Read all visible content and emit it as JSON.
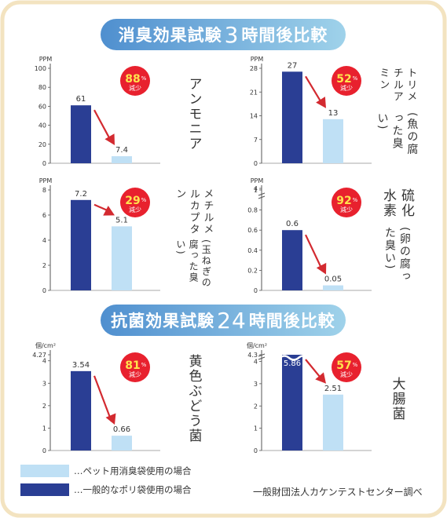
{
  "colors": {
    "frame": "#f3e3c0",
    "general": "#2a3e94",
    "pet": "#bfe0f5",
    "badge": "#e8212e",
    "arrow": "#d32a30",
    "axis": "#555555"
  },
  "sections": {
    "deodor": {
      "pre": "消臭効果試験",
      "num": "3",
      "post": "時間後比較"
    },
    "antibac": {
      "pre": "抗菌効果試験",
      "num": "24",
      "post": "時間後比較"
    }
  },
  "legend": {
    "pet": "…ペット用消臭袋使用の場合",
    "general": "…一般的なポリ袋使用の場合"
  },
  "source": "一般財団法人カケンテストセンター調べ",
  "chart_data": [
    {
      "type": "bar",
      "unit": "PPM",
      "yticks": [
        "0",
        "20",
        "40",
        "60",
        "80",
        "100"
      ],
      "ylim": [
        0,
        100
      ],
      "series": [
        {
          "name": "一般的なポリ袋使用の場合",
          "value": 61,
          "label": "61"
        },
        {
          "name": "ペット用消臭袋使用の場合",
          "value": 7.4,
          "label": "7.4"
        }
      ],
      "reduction": "88",
      "reduction_unit": "%",
      "reduction_text": "減少",
      "label_main": "アンモニア",
      "label_sub": ""
    },
    {
      "type": "bar",
      "unit": "PPM",
      "yticks": [
        "0",
        "7",
        "14",
        "21",
        "28"
      ],
      "ylim": [
        0,
        28
      ],
      "series": [
        {
          "name": "一般的なポリ袋使用の場合",
          "value": 27,
          "label": "27"
        },
        {
          "name": "ペット用消臭袋使用の場合",
          "value": 13,
          "label": "13"
        }
      ],
      "reduction": "52",
      "reduction_unit": "%",
      "reduction_text": "減少",
      "label_main": "トリメチルアミン",
      "label_sub": "(魚の腐った臭い)"
    },
    {
      "type": "bar",
      "unit": "PPM",
      "yticks": [
        "0",
        "2",
        "4",
        "6",
        "8"
      ],
      "ylim": [
        0,
        8
      ],
      "series": [
        {
          "name": "一般的なポリ袋使用の場合",
          "value": 7.2,
          "label": "7.2"
        },
        {
          "name": "ペット用消臭袋使用の場合",
          "value": 5.1,
          "label": "5.1"
        }
      ],
      "reduction": "29",
      "reduction_unit": "%",
      "reduction_text": "減少",
      "label_main": "メチルメルカプタン",
      "label_sub": "(玉ねぎの腐った臭い)"
    },
    {
      "type": "bar",
      "unit": "PPM",
      "yticks": [
        "0",
        "0.2",
        "0.4",
        "0.6",
        "0.8",
        "1",
        "4"
      ],
      "ylim": [
        0,
        1
      ],
      "axis_break": true,
      "series": [
        {
          "name": "一般的なポリ袋使用の場合",
          "value": 0.6,
          "label": "0.6"
        },
        {
          "name": "ペット用消臭袋使用の場合",
          "value": 0.05,
          "label": "0.05"
        }
      ],
      "reduction": "92",
      "reduction_unit": "%",
      "reduction_text": "減少",
      "label_main": "硫化水素",
      "label_sub": "(卵の腐った臭い)"
    },
    {
      "type": "bar",
      "unit": "個/cm²",
      "yticks": [
        "0",
        "1",
        "2",
        "3",
        "4",
        "4.27"
      ],
      "ylim": [
        0,
        4.27
      ],
      "series": [
        {
          "name": "一般的なポリ袋使用の場合",
          "value": 3.54,
          "label": "3.54"
        },
        {
          "name": "ペット用消臭袋使用の場合",
          "value": 0.66,
          "label": "0.66"
        }
      ],
      "reduction": "81",
      "reduction_unit": "%",
      "reduction_text": "減少",
      "label_main": "黄色ぶどう菌",
      "label_sub": ""
    },
    {
      "type": "bar",
      "unit": "個/cm²",
      "yticks": [
        "0",
        "1",
        "2",
        "3",
        "4",
        "4.3"
      ],
      "ylim": [
        0,
        4.3
      ],
      "bar_break": true,
      "series": [
        {
          "name": "一般的なポリ袋使用の場合",
          "value": 5.86,
          "label": "5.86"
        },
        {
          "name": "ペット用消臭袋使用の場合",
          "value": 2.51,
          "label": "2.51"
        }
      ],
      "reduction": "57",
      "reduction_unit": "%",
      "reduction_text": "減少",
      "label_main": "大腸菌",
      "label_sub": ""
    }
  ]
}
